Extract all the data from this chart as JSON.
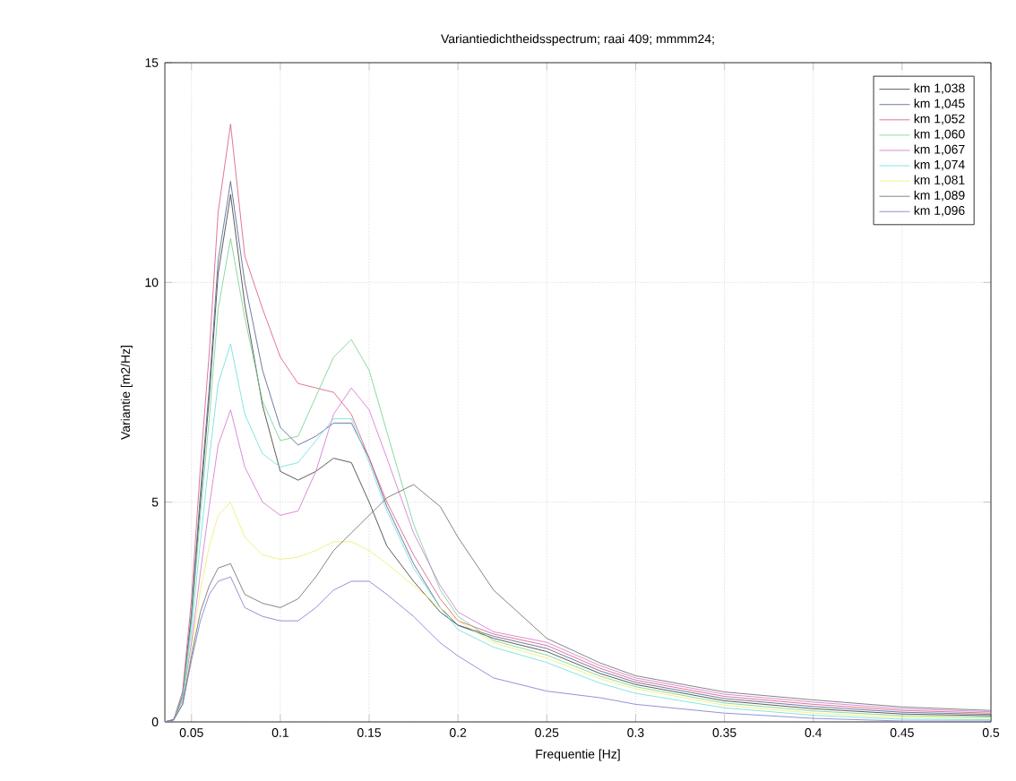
{
  "chart_data": {
    "type": "line",
    "title": "Variantiedichtheidsspectrum; raai 409; mmmm24;",
    "xlabel": "Frequentie [Hz]",
    "ylabel": "Variantie [m2/Hz]",
    "x": [
      0.035,
      0.04,
      0.045,
      0.05,
      0.055,
      0.06,
      0.065,
      0.072,
      0.08,
      0.09,
      0.1,
      0.11,
      0.12,
      0.13,
      0.14,
      0.15,
      0.16,
      0.175,
      0.19,
      0.2,
      0.22,
      0.25,
      0.28,
      0.3,
      0.35,
      0.4,
      0.45,
      0.5
    ],
    "series": [
      {
        "name": "km 1,038",
        "color": "#333333",
        "values": [
          0,
          0.05,
          0.6,
          2.4,
          5.0,
          7.4,
          10.2,
          12.0,
          9.5,
          7.2,
          5.7,
          5.5,
          5.7,
          6.0,
          5.9,
          5.0,
          4.0,
          3.2,
          2.5,
          2.2,
          1.9,
          1.6,
          1.1,
          0.85,
          0.48,
          0.3,
          0.18,
          0.14
        ]
      },
      {
        "name": "km 1,045",
        "color": "#4a5a8a",
        "values": [
          0,
          0.05,
          0.6,
          2.5,
          5.2,
          7.6,
          10.5,
          12.3,
          10.0,
          8.0,
          6.7,
          6.3,
          6.5,
          6.8,
          6.8,
          6.0,
          4.9,
          3.6,
          2.6,
          2.2,
          1.95,
          1.67,
          1.16,
          0.9,
          0.53,
          0.35,
          0.22,
          0.17
        ]
      },
      {
        "name": "km 1,052",
        "color": "#d9537a",
        "values": [
          0,
          0.05,
          0.7,
          2.8,
          5.8,
          8.4,
          11.6,
          13.6,
          10.6,
          9.4,
          8.3,
          7.7,
          7.6,
          7.5,
          7.0,
          6.0,
          5.0,
          3.8,
          2.8,
          2.3,
          2.0,
          1.74,
          1.22,
          0.95,
          0.58,
          0.4,
          0.26,
          0.2
        ]
      },
      {
        "name": "km 1,060",
        "color": "#6fcf8a",
        "values": [
          0,
          0.05,
          0.6,
          2.3,
          4.7,
          6.9,
          9.4,
          11.0,
          9.2,
          7.3,
          6.4,
          6.5,
          7.4,
          8.3,
          8.7,
          8.0,
          6.6,
          4.5,
          3.0,
          2.4,
          1.85,
          1.52,
          1.04,
          0.8,
          0.43,
          0.25,
          0.14,
          0.11
        ]
      },
      {
        "name": "km 1,067",
        "color": "#d070d0",
        "values": [
          0,
          0.05,
          0.5,
          1.8,
          3.4,
          4.9,
          6.3,
          7.1,
          5.8,
          5.0,
          4.7,
          4.8,
          5.7,
          7.0,
          7.6,
          7.1,
          6.0,
          4.3,
          3.1,
          2.5,
          2.05,
          1.81,
          1.28,
          1.0,
          0.63,
          0.45,
          0.3,
          0.23
        ]
      },
      {
        "name": "km 1,074",
        "color": "#66dddd",
        "values": [
          0,
          0.05,
          0.5,
          2.1,
          4.1,
          6.0,
          7.7,
          8.6,
          7.0,
          6.1,
          5.8,
          5.9,
          6.4,
          6.9,
          6.9,
          5.9,
          4.8,
          3.5,
          2.6,
          2.1,
          1.7,
          1.35,
          0.88,
          0.65,
          0.32,
          0.15,
          0.06,
          0.05
        ]
      },
      {
        "name": "km 1,081",
        "color": "#eeee66",
        "values": [
          0,
          0.05,
          0.4,
          1.6,
          3.0,
          4.0,
          4.7,
          5.0,
          4.2,
          3.8,
          3.7,
          3.75,
          3.9,
          4.1,
          4.1,
          3.9,
          3.6,
          3.1,
          2.6,
          2.3,
          1.8,
          1.45,
          0.98,
          0.75,
          0.38,
          0.2,
          0.1,
          0.08
        ]
      },
      {
        "name": "km 1,089",
        "color": "#666666",
        "values": [
          0,
          0.05,
          0.4,
          1.5,
          2.5,
          3.1,
          3.5,
          3.6,
          2.9,
          2.7,
          2.6,
          2.8,
          3.3,
          3.9,
          4.3,
          4.7,
          5.1,
          5.4,
          4.9,
          4.2,
          3.0,
          1.9,
          1.34,
          1.05,
          0.68,
          0.5,
          0.34,
          0.26
        ]
      },
      {
        "name": "km 1,096",
        "color": "#7777cc",
        "values": [
          0,
          0.05,
          0.4,
          1.4,
          2.3,
          2.9,
          3.2,
          3.3,
          2.6,
          2.4,
          2.3,
          2.3,
          2.6,
          3.0,
          3.2,
          3.2,
          2.9,
          2.4,
          1.8,
          1.5,
          1.0,
          0.7,
          0.55,
          0.4,
          0.2,
          0.08,
          0.02,
          0.02
        ]
      }
    ],
    "xlim": [
      0.035,
      0.5
    ],
    "ylim": [
      0,
      15
    ],
    "xticks": [
      0.05,
      0.1,
      0.15,
      0.2,
      0.25,
      0.3,
      0.35,
      0.4,
      0.45,
      0.5
    ],
    "yticks": [
      0,
      5,
      10,
      15
    ],
    "grid": true,
    "legend": "top right",
    "marker": "none",
    "line_style": "solid"
  }
}
